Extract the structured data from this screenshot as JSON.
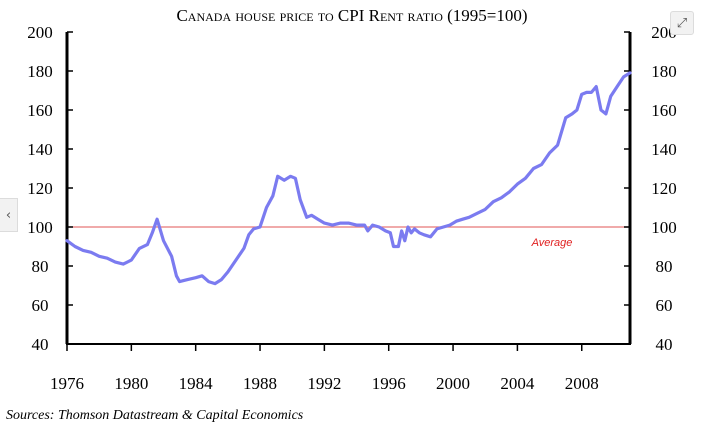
{
  "chart_data": {
    "type": "line",
    "title": "Canada house price to CPI Rent ratio (1995=100)",
    "source": "Sources: Thomson Datastream & Capital Economics",
    "xlim": [
      1976,
      2011
    ],
    "ylim": [
      40,
      200
    ],
    "x_ticks": [
      1976,
      1980,
      1984,
      1988,
      1992,
      1996,
      2000,
      2004,
      2008
    ],
    "y_ticks": [
      40,
      60,
      80,
      100,
      120,
      140,
      160,
      180,
      200
    ],
    "reference_line": {
      "value": 100,
      "label": "Average",
      "color": "#e87878"
    },
    "series": [
      {
        "name": "House price to CPI Rent ratio",
        "color": "#7b7bf0",
        "x": [
          1976.0,
          1976.5,
          1977.0,
          1977.5,
          1978.0,
          1978.5,
          1979.0,
          1979.5,
          1980.0,
          1980.5,
          1981.0,
          1981.3,
          1981.6,
          1982.0,
          1982.5,
          1982.8,
          1983.0,
          1983.5,
          1984.0,
          1984.4,
          1984.8,
          1985.2,
          1985.6,
          1986.0,
          1986.5,
          1987.0,
          1987.3,
          1987.6,
          1988.0,
          1988.4,
          1988.8,
          1989.1,
          1989.5,
          1989.9,
          1990.2,
          1990.5,
          1990.9,
          1991.2,
          1991.6,
          1992.0,
          1992.5,
          1993.0,
          1993.5,
          1994.0,
          1994.5,
          1994.7,
          1995.0,
          1995.4,
          1995.8,
          1996.1,
          1996.3,
          1996.6,
          1996.8,
          1997.0,
          1997.2,
          1997.4,
          1997.6,
          1997.9,
          1998.2,
          1998.6,
          1999.0,
          1999.4,
          1999.8,
          2000.2,
          2000.6,
          2001.0,
          2001.5,
          2002.0,
          2002.5,
          2003.0,
          2003.5,
          2004.0,
          2004.5,
          2005.0,
          2005.5,
          2006.0,
          2006.5,
          2007.0,
          2007.4,
          2007.7,
          2008.0,
          2008.3,
          2008.6,
          2008.9,
          2009.2,
          2009.5,
          2009.8,
          2010.2,
          2010.6,
          2011.0
        ],
        "values": [
          93,
          90,
          88,
          87,
          85,
          84,
          82,
          81,
          83,
          89,
          91,
          97,
          104,
          93,
          85,
          75,
          72,
          73,
          74,
          75,
          72,
          71,
          73,
          77,
          83,
          89,
          96,
          99,
          100,
          110,
          116,
          126,
          124,
          126,
          125,
          114,
          105,
          106,
          104,
          102,
          101,
          102,
          102,
          101,
          101,
          98,
          101,
          100,
          98,
          97,
          90,
          90,
          98,
          93,
          100,
          97,
          99,
          97,
          96,
          95,
          99,
          100,
          101,
          103,
          104,
          105,
          107,
          109,
          113,
          115,
          118,
          122,
          125,
          130,
          132,
          138,
          142,
          156,
          158,
          160,
          168,
          169,
          169,
          172,
          160,
          158,
          167,
          172,
          177,
          179
        ]
      }
    ]
  },
  "ui": {
    "prev_icon": "‹",
    "expand_icon": "⤢",
    "prev_icon_name": "chevron-left-icon",
    "expand_icon_name": "expand-icon"
  }
}
